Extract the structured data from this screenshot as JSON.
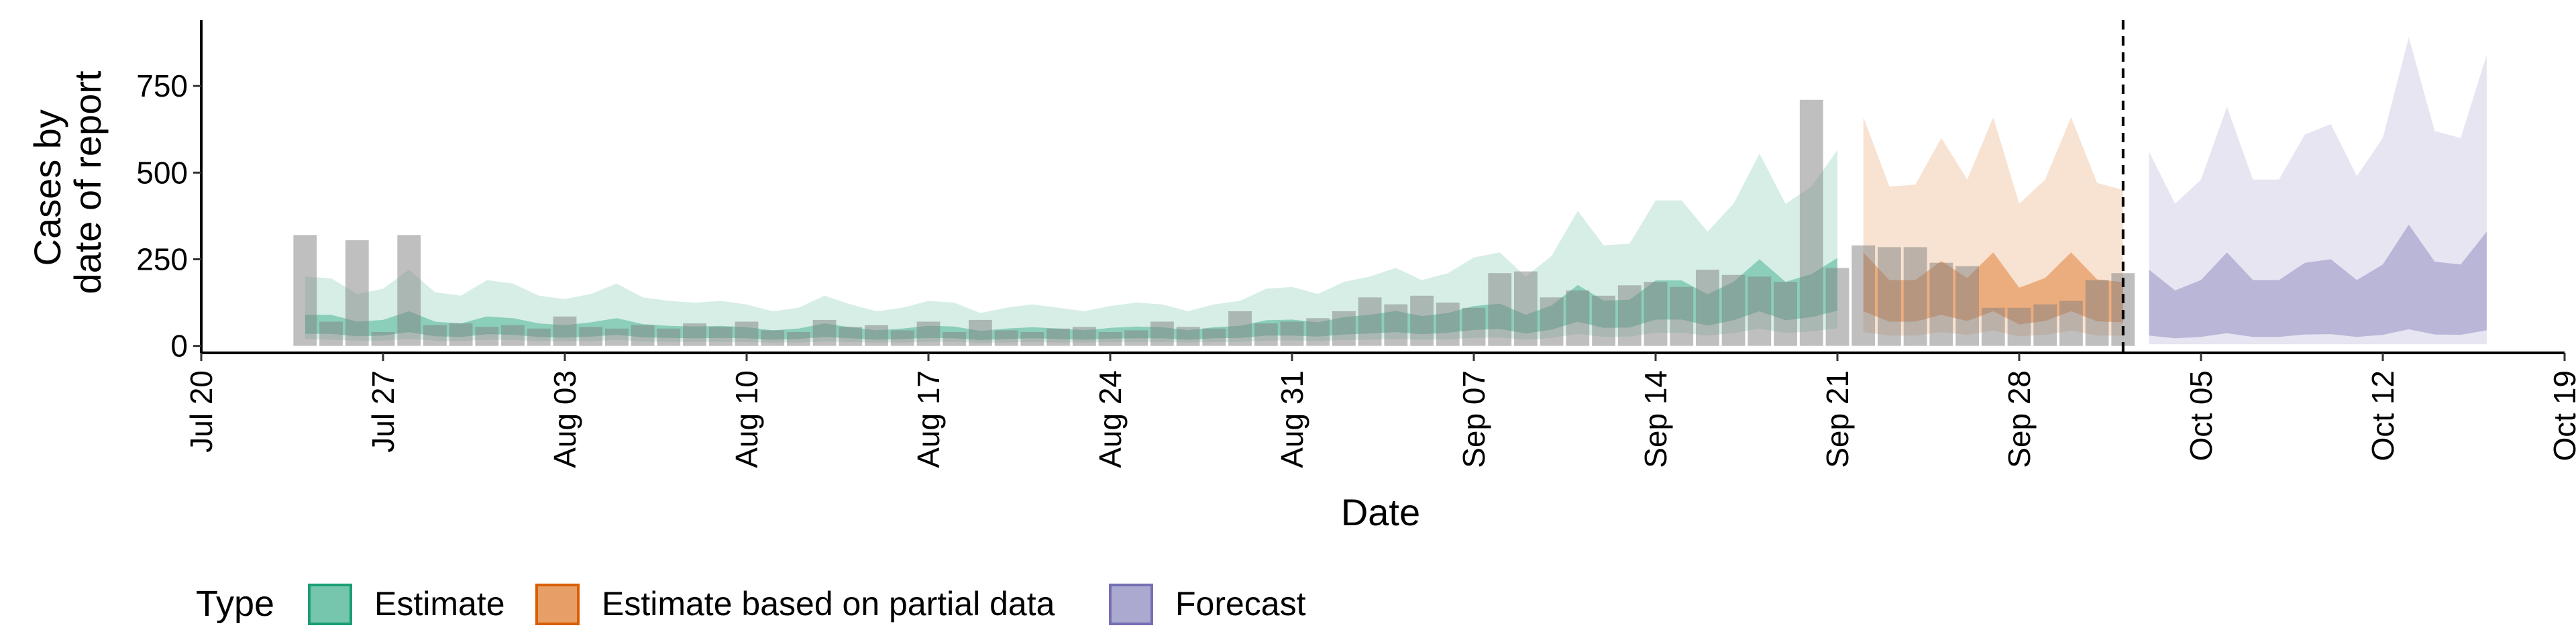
{
  "chart_data": {
    "type": "bar",
    "xlabel": "Date",
    "ylabel": [
      "Cases by",
      "date of report"
    ],
    "xlim": [
      "2020-07-20",
      "2020-10-19"
    ],
    "ylim": [
      -20,
      940
    ],
    "y_ticks": [
      0,
      250,
      500,
      750
    ],
    "x_ticks": [
      {
        "date": "2020-07-20",
        "label": "Jul 20"
      },
      {
        "date": "2020-07-27",
        "label": "Jul 27"
      },
      {
        "date": "2020-08-03",
        "label": "Aug 03"
      },
      {
        "date": "2020-08-10",
        "label": "Aug 10"
      },
      {
        "date": "2020-08-17",
        "label": "Aug 17"
      },
      {
        "date": "2020-08-24",
        "label": "Aug 24"
      },
      {
        "date": "2020-08-31",
        "label": "Aug 31"
      },
      {
        "date": "2020-09-07",
        "label": "Sep 07"
      },
      {
        "date": "2020-09-14",
        "label": "Sep 14"
      },
      {
        "date": "2020-09-21",
        "label": "Sep 21"
      },
      {
        "date": "2020-09-28",
        "label": "Sep 28"
      },
      {
        "date": "2020-10-05",
        "label": "Oct 05"
      },
      {
        "date": "2020-10-12",
        "label": "Oct 12"
      },
      {
        "date": "2020-10-19",
        "label": "Oct 19"
      }
    ],
    "forecast_date_line": "2020-10-02",
    "observed_cases": {
      "dates": [
        "2020-07-24",
        "2020-07-25",
        "2020-07-26",
        "2020-07-27",
        "2020-07-28",
        "2020-07-29",
        "2020-07-30",
        "2020-07-31",
        "2020-08-01",
        "2020-08-02",
        "2020-08-03",
        "2020-08-04",
        "2020-08-05",
        "2020-08-06",
        "2020-08-07",
        "2020-08-08",
        "2020-08-09",
        "2020-08-10",
        "2020-08-11",
        "2020-08-12",
        "2020-08-13",
        "2020-08-14",
        "2020-08-15",
        "2020-08-16",
        "2020-08-17",
        "2020-08-18",
        "2020-08-19",
        "2020-08-20",
        "2020-08-21",
        "2020-08-22",
        "2020-08-23",
        "2020-08-24",
        "2020-08-25",
        "2020-08-26",
        "2020-08-27",
        "2020-08-28",
        "2020-08-29",
        "2020-08-30",
        "2020-08-31",
        "2020-09-01",
        "2020-09-02",
        "2020-09-03",
        "2020-09-04",
        "2020-09-05",
        "2020-09-06",
        "2020-09-07",
        "2020-09-08",
        "2020-09-09",
        "2020-09-10",
        "2020-09-11",
        "2020-09-12",
        "2020-09-13",
        "2020-09-14",
        "2020-09-15",
        "2020-09-16",
        "2020-09-17",
        "2020-09-18",
        "2020-09-19",
        "2020-09-20",
        "2020-09-21",
        "2020-09-22",
        "2020-09-23",
        "2020-09-24",
        "2020-09-25",
        "2020-09-26",
        "2020-09-27",
        "2020-09-28",
        "2020-09-29",
        "2020-09-30",
        "2020-10-01",
        "2020-10-02"
      ],
      "values": [
        320,
        70,
        305,
        40,
        320,
        60,
        65,
        55,
        60,
        50,
        85,
        55,
        50,
        60,
        50,
        65,
        55,
        70,
        45,
        40,
        75,
        55,
        60,
        45,
        70,
        40,
        75,
        45,
        40,
        50,
        55,
        40,
        45,
        70,
        55,
        50,
        100,
        65,
        70,
        80,
        100,
        140,
        120,
        145,
        125,
        110,
        210,
        215,
        140,
        160,
        145,
        175,
        185,
        170,
        220,
        205,
        200,
        185,
        710,
        225,
        290,
        285,
        285,
        240,
        230,
        110,
        110,
        120,
        130,
        190,
        210
      ]
    },
    "series": [
      {
        "name": "Estimate",
        "color": "#1B9E77",
        "dates": [
          "2020-07-24",
          "2020-07-25",
          "2020-07-26",
          "2020-07-27",
          "2020-07-28",
          "2020-07-29",
          "2020-07-30",
          "2020-07-31",
          "2020-08-01",
          "2020-08-02",
          "2020-08-03",
          "2020-08-04",
          "2020-08-05",
          "2020-08-06",
          "2020-08-07",
          "2020-08-08",
          "2020-08-09",
          "2020-08-10",
          "2020-08-11",
          "2020-08-12",
          "2020-08-13",
          "2020-08-14",
          "2020-08-15",
          "2020-08-16",
          "2020-08-17",
          "2020-08-18",
          "2020-08-19",
          "2020-08-20",
          "2020-08-21",
          "2020-08-22",
          "2020-08-23",
          "2020-08-24",
          "2020-08-25",
          "2020-08-26",
          "2020-08-27",
          "2020-08-28",
          "2020-08-29",
          "2020-08-30",
          "2020-08-31",
          "2020-09-01",
          "2020-09-02",
          "2020-09-03",
          "2020-09-04",
          "2020-09-05",
          "2020-09-06",
          "2020-09-07",
          "2020-09-08",
          "2020-09-09",
          "2020-09-10",
          "2020-09-11",
          "2020-09-12",
          "2020-09-13",
          "2020-09-14",
          "2020-09-15",
          "2020-09-16",
          "2020-09-17",
          "2020-09-18",
          "2020-09-19",
          "2020-09-20",
          "2020-09-21"
        ],
        "upper90": [
          200,
          195,
          150,
          165,
          220,
          155,
          145,
          190,
          180,
          145,
          135,
          150,
          180,
          140,
          130,
          125,
          130,
          120,
          100,
          110,
          145,
          120,
          100,
          110,
          130,
          125,
          95,
          110,
          120,
          110,
          100,
          115,
          125,
          120,
          100,
          120,
          130,
          165,
          170,
          150,
          185,
          200,
          225,
          190,
          210,
          255,
          270,
          200,
          260,
          390,
          290,
          295,
          420,
          420,
          330,
          410,
          555,
          410,
          460,
          565
        ],
        "lower90": [
          20,
          18,
          15,
          15,
          20,
          15,
          14,
          18,
          17,
          14,
          13,
          14,
          17,
          13,
          12,
          12,
          12,
          11,
          10,
          10,
          13,
          11,
          10,
          10,
          12,
          12,
          9,
          10,
          11,
          10,
          10,
          11,
          12,
          11,
          10,
          11,
          12,
          15,
          16,
          14,
          17,
          18,
          20,
          18,
          19,
          23,
          24,
          18,
          23,
          35,
          26,
          27,
          38,
          38,
          30,
          37,
          50,
          37,
          42,
          51
        ],
        "upper50": [
          90,
          90,
          70,
          75,
          100,
          70,
          65,
          85,
          80,
          65,
          60,
          68,
          80,
          63,
          58,
          56,
          58,
          54,
          45,
          50,
          65,
          54,
          45,
          50,
          58,
          56,
          43,
          50,
          54,
          50,
          45,
          52,
          56,
          54,
          45,
          54,
          58,
          74,
          76,
          68,
          83,
          90,
          101,
          86,
          95,
          115,
          122,
          90,
          117,
          176,
          131,
          133,
          189,
          189,
          149,
          185,
          250,
          185,
          207,
          254
        ],
        "lower50": [
          35,
          35,
          28,
          30,
          40,
          28,
          26,
          34,
          32,
          26,
          24,
          27,
          32,
          25,
          23,
          22,
          23,
          22,
          18,
          20,
          26,
          22,
          18,
          20,
          23,
          22,
          17,
          20,
          22,
          20,
          18,
          21,
          22,
          22,
          18,
          22,
          23,
          30,
          30,
          27,
          33,
          36,
          40,
          34,
          38,
          46,
          49,
          36,
          47,
          70,
          52,
          53,
          76,
          76,
          59,
          74,
          100,
          74,
          83,
          102
        ]
      },
      {
        "name": "Estimate based on partial data",
        "color": "#D95F02",
        "dates": [
          "2020-09-22",
          "2020-09-23",
          "2020-09-24",
          "2020-09-25",
          "2020-09-26",
          "2020-09-27",
          "2020-09-28",
          "2020-09-29",
          "2020-09-30",
          "2020-10-01",
          "2020-10-02"
        ],
        "upper90": [
          660,
          460,
          465,
          600,
          480,
          660,
          410,
          480,
          660,
          470,
          450
        ],
        "lower90": [
          40,
          30,
          30,
          40,
          32,
          44,
          28,
          32,
          44,
          30,
          30
        ],
        "upper50": [
          270,
          190,
          190,
          245,
          196,
          270,
          168,
          196,
          270,
          192,
          184
        ],
        "lower50": [
          100,
          70,
          70,
          90,
          72,
          100,
          62,
          72,
          100,
          71,
          68
        ]
      },
      {
        "name": "Forecast",
        "color": "#7570B3",
        "dates": [
          "2020-10-03",
          "2020-10-04",
          "2020-10-05",
          "2020-10-06",
          "2020-10-07",
          "2020-10-08",
          "2020-10-09",
          "2020-10-10",
          "2020-10-11",
          "2020-10-12",
          "2020-10-13",
          "2020-10-14",
          "2020-10-15",
          "2020-10-16"
        ],
        "upper90": [
          560,
          410,
          480,
          690,
          480,
          480,
          610,
          640,
          490,
          600,
          890,
          620,
          600,
          840
        ],
        "lower90": [
          5,
          5,
          5,
          5,
          5,
          5,
          5,
          5,
          5,
          5,
          5,
          5,
          5,
          5
        ],
        "upper50": [
          220,
          160,
          190,
          270,
          190,
          190,
          240,
          250,
          190,
          235,
          350,
          243,
          235,
          330
        ],
        "lower50": [
          30,
          22,
          26,
          37,
          26,
          26,
          33,
          34,
          26,
          32,
          48,
          33,
          32,
          45
        ]
      }
    ],
    "legend": {
      "title": "Type",
      "position": "bottom",
      "items": [
        {
          "label": "Estimate",
          "color": "#1B9E77"
        },
        {
          "label": "Estimate based on partial data",
          "color": "#D95F02"
        },
        {
          "label": "Forecast",
          "color": "#7570B3"
        }
      ]
    },
    "grid": false
  }
}
